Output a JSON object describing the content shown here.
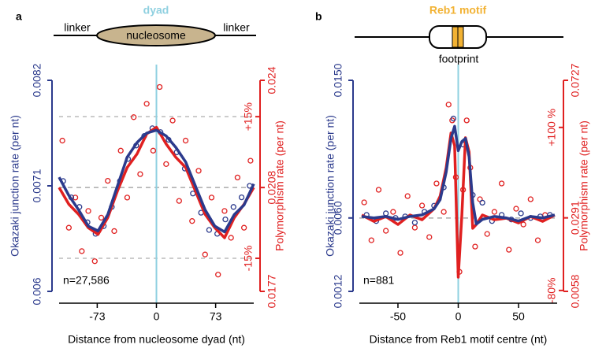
{
  "chart_data": [
    {
      "type": "line",
      "panel_label": "a",
      "schematic": {
        "center_label": "dyad",
        "left_label": "linker",
        "body_label": "nucleosome",
        "right_label": "linker"
      },
      "x_label": "Distance from nucleosome dyad (nt)",
      "y_label": "Okazaki junction rate (per nt)",
      "y2_label": "Polymorphism rate (per nt)",
      "annotation": "n=27,586",
      "xlim": [
        -120,
        120
      ],
      "xticks": [
        -73,
        0,
        73
      ],
      "ylim": [
        0.006,
        0.0082
      ],
      "yticks": [
        0.006,
        0.0071,
        0.0082
      ],
      "y2lim": [
        0.0177,
        0.024
      ],
      "y2ticks": [
        0.0177,
        0.0208,
        0.024
      ],
      "pct_lim": [
        -22,
        22.7
      ],
      "pct_ticks": [
        {
          "value": 15,
          "label": "+15%"
        },
        {
          "value": -15,
          "label": "-15%"
        }
      ],
      "pct_grid": true,
      "series": [
        {
          "style": "points",
          "color": "#e02020",
          "axis": "y2",
          "x": [
            -116,
            -108,
            -100,
            -92,
            -84,
            -76,
            -68,
            -60,
            -52,
            -44,
            -36,
            -28,
            -20,
            -12,
            -4,
            4,
            12,
            20,
            28,
            36,
            44,
            52,
            60,
            68,
            76,
            84,
            92,
            100,
            108,
            116
          ],
          "values": [
            0.0222,
            0.0196,
            0.0205,
            0.0189,
            0.0201,
            0.0186,
            0.0199,
            0.021,
            0.0195,
            0.0219,
            0.0205,
            0.0229,
            0.0212,
            0.0233,
            0.0219,
            0.0238,
            0.0215,
            0.0228,
            0.0204,
            0.0222,
            0.0198,
            0.0213,
            0.0188,
            0.0205,
            0.0182,
            0.0201,
            0.0193,
            0.0211,
            0.0196,
            0.0216
          ]
        },
        {
          "style": "points",
          "color": "#2b3a8c",
          "axis": "y",
          "x": [
            -115,
            -105,
            -95,
            -85,
            -75,
            -65,
            -55,
            -45,
            -35,
            -25,
            -15,
            -5,
            5,
            15,
            25,
            35,
            45,
            55,
            65,
            75,
            85,
            95,
            105,
            115
          ],
          "values": [
            0.00715,
            0.00698,
            0.00688,
            0.00672,
            0.0066,
            0.00668,
            0.00688,
            0.00715,
            0.00738,
            0.00752,
            0.00762,
            0.0077,
            0.00766,
            0.00758,
            0.00745,
            0.00728,
            0.00702,
            0.00682,
            0.00664,
            0.0066,
            0.00675,
            0.00688,
            0.00698,
            0.0071
          ]
        },
        {
          "style": "line",
          "color": "#e02020",
          "axis": "y2",
          "x": [
            -120,
            -108,
            -96,
            -84,
            -72,
            -60,
            -48,
            -36,
            -24,
            -12,
            0,
            12,
            24,
            36,
            48,
            60,
            72,
            84,
            96,
            108,
            120
          ],
          "values": [
            0.0208,
            0.0203,
            0.02,
            0.0196,
            0.0194,
            0.0199,
            0.0207,
            0.0214,
            0.0218,
            0.0224,
            0.0226,
            0.0221,
            0.0217,
            0.0214,
            0.0207,
            0.02,
            0.0196,
            0.0193,
            0.0199,
            0.0203,
            0.0208
          ]
        },
        {
          "style": "line",
          "color": "#2b3a8c",
          "axis": "y",
          "x": [
            -120,
            -108,
            -96,
            -84,
            -72,
            -60,
            -48,
            -36,
            -24,
            -12,
            0,
            12,
            24,
            36,
            48,
            60,
            72,
            84,
            96,
            108,
            120
          ],
          "values": [
            0.00719,
            0.007,
            0.00685,
            0.00668,
            0.00663,
            0.0068,
            0.0071,
            0.0074,
            0.00755,
            0.00765,
            0.00768,
            0.00762,
            0.0075,
            0.00735,
            0.0071,
            0.00685,
            0.00668,
            0.00662,
            0.0068,
            0.0069,
            0.00712
          ]
        }
      ]
    },
    {
      "type": "line",
      "panel_label": "b",
      "schematic": {
        "center_label": "Reb1 motif",
        "below_label": "footprint"
      },
      "x_label": "Distance from Reb1 motif centre (nt)",
      "y_label": "Okazaki junction rate (per nt)",
      "y2_label": "Polymorphism rate (per nt)",
      "annotation": "n=881",
      "xlim": [
        -82,
        82
      ],
      "xticks": [
        -50,
        0,
        50
      ],
      "ylim": [
        0.0012,
        0.015
      ],
      "yticks": [
        0.0012,
        {
          "value": 0.006,
          "label": "0.0060"
        },
        {
          "value": 0.015,
          "label": "0.0150"
        }
      ],
      "y2lim": [
        0.0058,
        0.0727
      ],
      "y2ticks": [
        0.0058,
        0.0291,
        0.0727
      ],
      "pct_lim": [
        -81,
        152
      ],
      "pct_ticks": [
        {
          "value": 100,
          "label": "+100 %"
        },
        {
          "value": -80,
          "label": "-80%"
        }
      ],
      "pct_grid": false,
      "series": [
        {
          "style": "points",
          "color": "#e02020",
          "axis": "y2",
          "x": [
            -78,
            -72,
            -66,
            -60,
            -54,
            -48,
            -42,
            -36,
            -30,
            -24,
            -18,
            -12,
            -8,
            -5,
            -2,
            1,
            4,
            7,
            10,
            14,
            18,
            24,
            30,
            36,
            42,
            48,
            54,
            60,
            66,
            72
          ],
          "values": [
            0.034,
            0.022,
            0.038,
            0.025,
            0.031,
            0.018,
            0.036,
            0.026,
            0.033,
            0.023,
            0.04,
            0.031,
            0.065,
            0.06,
            0.042,
            0.012,
            0.038,
            0.06,
            0.045,
            0.02,
            0.035,
            0.024,
            0.031,
            0.04,
            0.019,
            0.032,
            0.027,
            0.035,
            0.022,
            0.03
          ]
        },
        {
          "style": "points",
          "color": "#2b3a8c",
          "axis": "y",
          "x": [
            -76,
            -68,
            -60,
            -52,
            -44,
            -36,
            -28,
            -20,
            -12,
            -4,
            4,
            12,
            20,
            28,
            36,
            44,
            52,
            60,
            68,
            76
          ],
          "values": [
            0.0062,
            0.0058,
            0.0063,
            0.006,
            0.0061,
            0.0057,
            0.0064,
            0.0068,
            0.008,
            0.0125,
            0.0108,
            0.0075,
            0.007,
            0.0058,
            0.0062,
            0.0059,
            0.0063,
            0.006,
            0.0061,
            0.0062
          ]
        },
        {
          "style": "line",
          "color": "#e02020",
          "axis": "y2",
          "x": [
            -80,
            -70,
            -60,
            -50,
            -40,
            -30,
            -20,
            -15,
            -10,
            -6,
            -3,
            0,
            3,
            6,
            9,
            12,
            15,
            20,
            30,
            40,
            50,
            60,
            70,
            80
          ],
          "values": [
            0.03,
            0.028,
            0.0295,
            0.027,
            0.03,
            0.0285,
            0.032,
            0.036,
            0.045,
            0.056,
            0.052,
            0.0103,
            0.03,
            0.0545,
            0.05,
            0.0258,
            0.027,
            0.03,
            0.0285,
            0.029,
            0.0275,
            0.0295,
            0.028,
            0.03
          ]
        },
        {
          "style": "line",
          "color": "#2b3a8c",
          "axis": "y",
          "x": [
            -80,
            -70,
            -60,
            -50,
            -40,
            -30,
            -20,
            -15,
            -10,
            -6,
            -3,
            0,
            3,
            6,
            9,
            12,
            15,
            20,
            30,
            40,
            50,
            60,
            70,
            80
          ],
          "values": [
            0.0061,
            0.006,
            0.0061,
            0.0059,
            0.0061,
            0.0062,
            0.0066,
            0.0072,
            0.009,
            0.0112,
            0.012,
            0.0104,
            0.011,
            0.0112,
            0.01,
            0.007,
            0.0056,
            0.0059,
            0.0061,
            0.006,
            0.0058,
            0.0061,
            0.006,
            0.0062
          ]
        }
      ]
    }
  ]
}
